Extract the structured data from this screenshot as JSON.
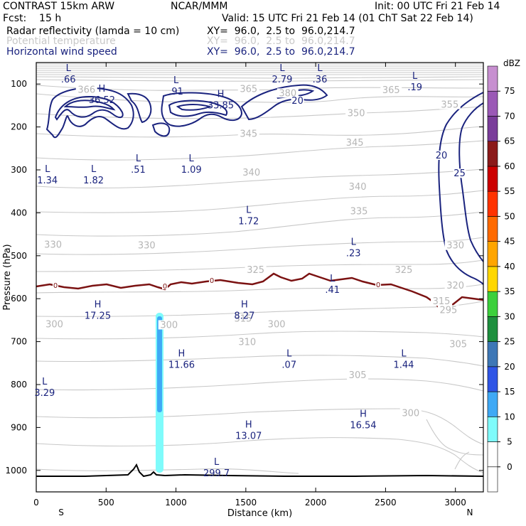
{
  "header": {
    "model": "CONTRAST 15km ARW",
    "org": "NCAR/MMM",
    "init": "Init: 00 UTC Fri 21 Feb 14",
    "fcst": "Fcst:    15 h",
    "valid": "Valid: 15 UTC Fri 21 Feb 14 (01 ChT Sat 22 Feb 14)",
    "fields": [
      {
        "name": "Radar reflectivity (lamda = 10 cm)",
        "xy": "XY=  96.0,  2.5 to  96.0,214.7",
        "color": "#000000"
      },
      {
        "name": "Potential temperature",
        "xy": "XY=  96.0,  2.5 to  96.0,214.7",
        "color": "#c8c8c8"
      },
      {
        "name": "Horizontal wind speed",
        "xy": "XY=  96.0,  2.5 to  96.0,214.7",
        "color": "#1a237e"
      }
    ]
  },
  "chart_data": {
    "type": "cross-section",
    "xlabel": "Distance (km)",
    "ylabel": "Pressure (hPa)",
    "xlim": [
      0,
      3200
    ],
    "ylim": [
      1050,
      50
    ],
    "xticks": [
      0,
      500,
      1000,
      1500,
      2000,
      2500,
      3000
    ],
    "yticks": [
      100,
      200,
      300,
      400,
      500,
      600,
      700,
      800,
      900,
      1000
    ],
    "x_end_labels": {
      "left": "S",
      "right": "N"
    },
    "colorbar": {
      "unit": "dBZ",
      "levels": [
        0,
        5,
        10,
        15,
        20,
        25,
        30,
        35,
        40,
        45,
        50,
        55,
        60,
        65,
        70,
        75
      ],
      "colors": [
        "#ffffff",
        "#ffffff",
        "#7ffbfb",
        "#3fa9f5",
        "#2f55e6",
        "#3e77b6",
        "#1e8f3e",
        "#3cd03c",
        "#ffd700",
        "#ffa500",
        "#ff6a00",
        "#ff3300",
        "#cc0000",
        "#8b1a1a",
        "#7a3d9a",
        "#9b59b6",
        "#c78fd0"
      ]
    },
    "theta_labels": [
      {
        "x": 130,
        "p": 663,
        "text": "300"
      },
      {
        "x": 950,
        "p": 665,
        "text": "300"
      },
      {
        "x": 1720,
        "p": 663,
        "text": "300"
      },
      {
        "x": 2950,
        "p": 630,
        "text": "295"
      },
      {
        "x": 2680,
        "p": 870,
        "text": "300"
      },
      {
        "x": 2300,
        "p": 782,
        "text": "305"
      },
      {
        "x": 3020,
        "p": 710,
        "text": "305"
      },
      {
        "x": 1510,
        "p": 705,
        "text": "310"
      },
      {
        "x": 1480,
        "p": 650,
        "text": "315"
      },
      {
        "x": 2900,
        "p": 610,
        "text": "315"
      },
      {
        "x": 3000,
        "p": 573,
        "text": "320"
      },
      {
        "x": 1570,
        "p": 537,
        "text": "325"
      },
      {
        "x": 2630,
        "p": 537,
        "text": "325"
      },
      {
        "x": 120,
        "p": 478,
        "text": "330"
      },
      {
        "x": 790,
        "p": 480,
        "text": "330"
      },
      {
        "x": 3000,
        "p": 480,
        "text": "330"
      },
      {
        "x": 2310,
        "p": 400,
        "text": "335"
      },
      {
        "x": 2300,
        "p": 343,
        "text": "340"
      },
      {
        "x": 1540,
        "p": 310,
        "text": "340"
      },
      {
        "x": 2280,
        "p": 240,
        "text": "345"
      },
      {
        "x": 1520,
        "p": 220,
        "text": "345"
      },
      {
        "x": 2290,
        "p": 172,
        "text": "350"
      },
      {
        "x": 2960,
        "p": 152,
        "text": "355"
      },
      {
        "x": 2540,
        "p": 118,
        "text": "365"
      },
      {
        "x": 1520,
        "p": 115,
        "text": "365"
      },
      {
        "x": 1800,
        "p": 125,
        "text": "380"
      },
      {
        "x": 360,
        "p": 117,
        "text": "366"
      }
    ],
    "wind_speed_labels": [
      {
        "x": 1870,
        "p": 143,
        "text": "20"
      },
      {
        "x": 2900,
        "p": 270,
        "text": "20"
      },
      {
        "x": 3030,
        "p": 312,
        "text": "25"
      }
    ],
    "zero_isotherm_label": "0",
    "extrema": [
      {
        "x": 230,
        "p": 70,
        "letter": "L",
        "value": ".66"
      },
      {
        "x": 1000,
        "p": 98,
        "letter": "L",
        "value": ".91"
      },
      {
        "x": 1760,
        "p": 70,
        "letter": "L",
        "value": "2.79"
      },
      {
        "x": 2030,
        "p": 70,
        "letter": "L",
        "value": ".36"
      },
      {
        "x": 2710,
        "p": 88,
        "letter": "L",
        "value": ".19"
      },
      {
        "x": 470,
        "p": 118,
        "letter": "H",
        "value": "36.52"
      },
      {
        "x": 1320,
        "p": 130,
        "letter": "H",
        "value": "33.85"
      },
      {
        "x": 80,
        "p": 305,
        "letter": "L",
        "value": "1.34"
      },
      {
        "x": 410,
        "p": 305,
        "letter": "L",
        "value": "1.82"
      },
      {
        "x": 730,
        "p": 280,
        "letter": "L",
        "value": ".51"
      },
      {
        "x": 1110,
        "p": 280,
        "letter": "L",
        "value": "1.09"
      },
      {
        "x": 1520,
        "p": 400,
        "letter": "L",
        "value": "1.72"
      },
      {
        "x": 2270,
        "p": 475,
        "letter": "L",
        "value": ".23"
      },
      {
        "x": 2120,
        "p": 560,
        "letter": "L",
        "value": ".41"
      },
      {
        "x": 440,
        "p": 620,
        "letter": "H",
        "value": "17.25"
      },
      {
        "x": 1490,
        "p": 620,
        "letter": "H",
        "value": "8.27"
      },
      {
        "x": 1040,
        "p": 735,
        "letter": "H",
        "value": "11.66"
      },
      {
        "x": 1810,
        "p": 735,
        "letter": "L",
        "value": ".07"
      },
      {
        "x": 2630,
        "p": 735,
        "letter": "L",
        "value": "1.44"
      },
      {
        "x": 60,
        "p": 800,
        "letter": "L",
        "value": "3.29"
      },
      {
        "x": 2340,
        "p": 875,
        "letter": "H",
        "value": "16.54"
      },
      {
        "x": 1520,
        "p": 900,
        "letter": "H",
        "value": "13.07"
      },
      {
        "x": 1290,
        "p": 987,
        "letter": "L",
        "value": "299.7"
      }
    ]
  }
}
